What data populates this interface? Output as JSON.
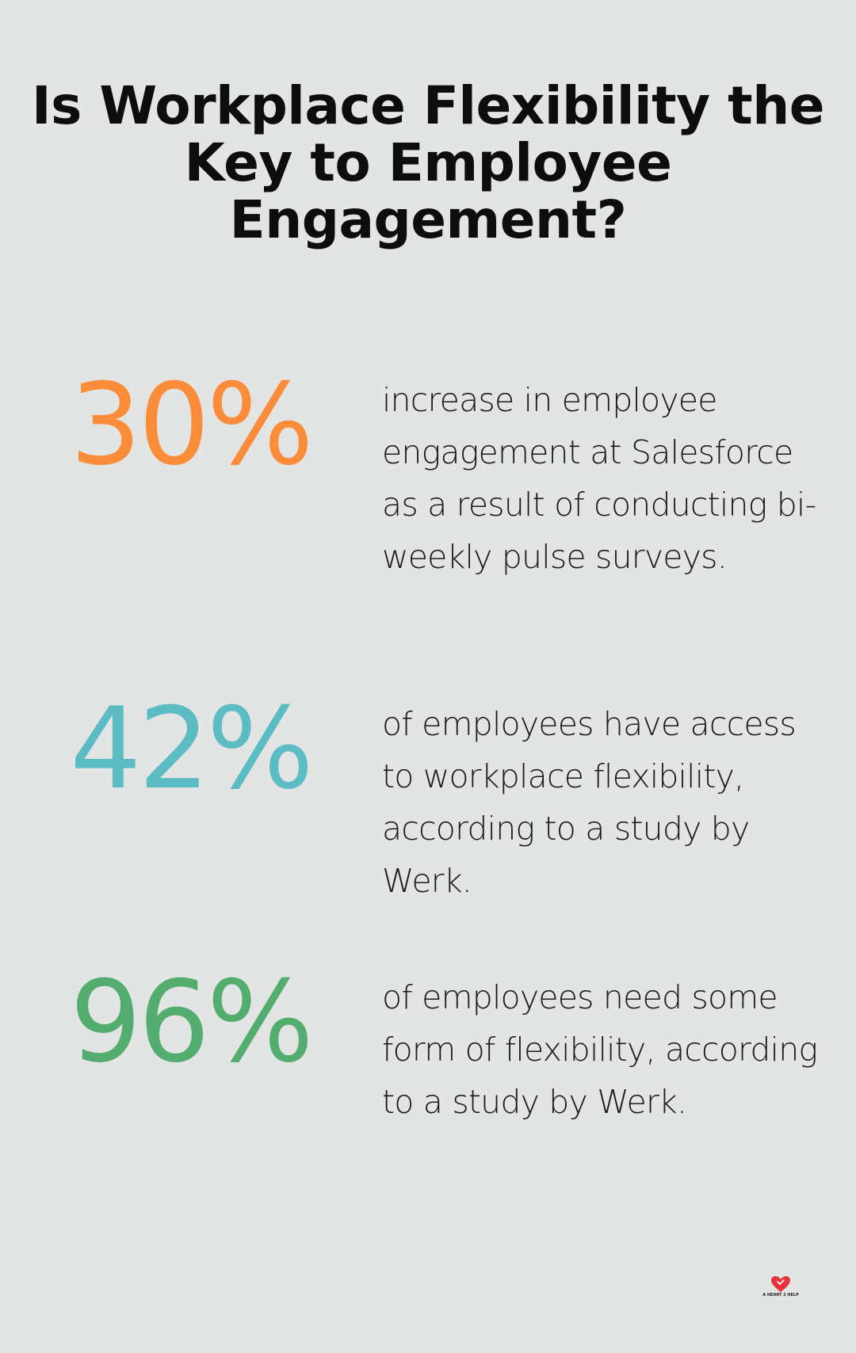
{
  "title": "Is Workplace Flexibility the Key to Employee Engagement?",
  "stats": [
    {
      "value": "30%",
      "color": "#fb8c3a",
      "description": "increase in employee engagement at Salesforce as a result of conducting bi-weekly pulse surveys."
    },
    {
      "value": "42%",
      "color": "#5bbcc3",
      "description": "of employees have access to workplace flexibility, according to a study by Werk."
    },
    {
      "value": "96%",
      "color": "#52ad6f",
      "description": "of employees need some form of flexibility, according to a study by Werk."
    }
  ],
  "logo": {
    "text": "A HEART 2 HELP",
    "icon": "heart-icon",
    "color": "#e8323c"
  }
}
